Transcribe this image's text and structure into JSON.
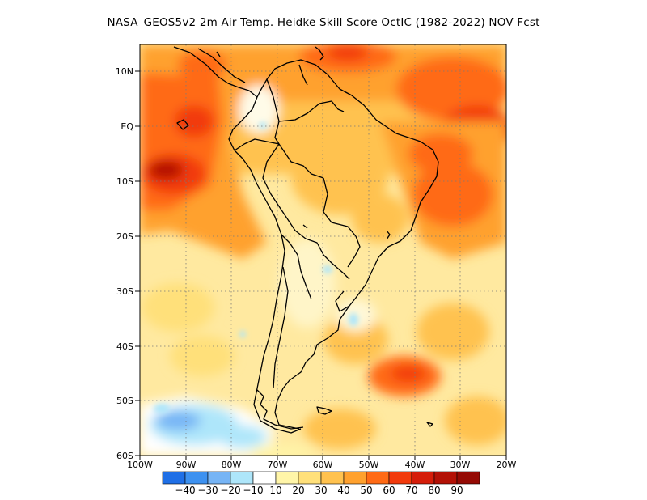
{
  "title": "NASA_GEOS5v2  2m Air Temp. Heidke Skill Score OctIC (1982-2022) NOV Fcst",
  "lat_labels": [
    "10N",
    "EQ",
    "10S",
    "20S",
    "30S",
    "40S",
    "50S",
    "60S"
  ],
  "lon_labels": [
    "100W",
    "90W",
    "80W",
    "70W",
    "60W",
    "50W",
    "40W",
    "30W",
    "20W"
  ],
  "colorbar": {
    "labels": [
      "-40",
      "-30",
      "-20",
      "-10",
      "10",
      "20",
      "30",
      "40",
      "50",
      "60",
      "70",
      "80",
      "90"
    ],
    "colors": [
      "#1f6fe6",
      "#3d91f0",
      "#76b4f5",
      "#aee6fa",
      "#ffffff",
      "#fff5a8",
      "#ffe07a",
      "#ffc24f",
      "#ffa12e",
      "#ff6a15",
      "#f23a0c",
      "#d51d0a",
      "#b31106",
      "#950a04"
    ]
  }
}
